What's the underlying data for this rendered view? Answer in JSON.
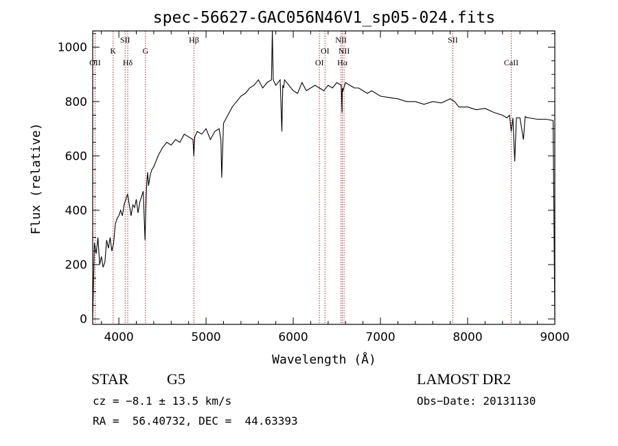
{
  "chart_data": {
    "type": "line",
    "title": "spec-56627-GAC056N46V1_sp05-024.fits",
    "xlabel": "Wavelength (Å)",
    "ylabel": "Flux (relative)",
    "xlim": [
      3700,
      9000
    ],
    "ylim": [
      -20,
      1060
    ],
    "xticks": [
      "4000",
      "5000",
      "6000",
      "7000",
      "8000",
      "9000"
    ],
    "yticks": [
      "0",
      "200",
      "400",
      "600",
      "800",
      "1000"
    ],
    "series": [
      {
        "x": [
          3700,
          3720,
          3740,
          3760,
          3780,
          3800,
          3820,
          3840,
          3860,
          3880,
          3900,
          3920,
          3940,
          3960,
          3980,
          4000,
          4020,
          4040,
          4060,
          4080,
          4100,
          4120,
          4140,
          4160,
          4180,
          4200,
          4220,
          4240,
          4260,
          4280,
          4300,
          4310,
          4320,
          4330,
          4340,
          4360,
          4380,
          4400,
          4450,
          4500,
          4550,
          4600,
          4650,
          4700,
          4750,
          4800,
          4850,
          4860,
          4870,
          4900,
          4950,
          5000,
          5050,
          5100,
          5150,
          5170,
          5180,
          5200,
          5250,
          5300,
          5350,
          5400,
          5450,
          5500,
          5550,
          5600,
          5650,
          5700,
          5750,
          5760,
          5770,
          5800,
          5850,
          5870,
          5880,
          5890,
          5900,
          5950,
          6000,
          6050,
          6100,
          6150,
          6200,
          6250,
          6300,
          6350,
          6400,
          6450,
          6500,
          6550,
          6560,
          6563,
          6570,
          6600,
          6650,
          6700,
          6750,
          6800,
          6850,
          6900,
          7000,
          7100,
          7200,
          7300,
          7400,
          7500,
          7600,
          7700,
          7800,
          7850,
          7900,
          8000,
          8100,
          8200,
          8300,
          8400,
          8450,
          8480,
          8500,
          8520,
          8540,
          8560,
          8600,
          8640,
          8660,
          8680,
          8700,
          8800,
          8900,
          8980,
          9000
        ],
        "y": [
          0,
          280,
          240,
          300,
          200,
          230,
          190,
          210,
          290,
          260,
          300,
          250,
          280,
          350,
          370,
          380,
          400,
          380,
          420,
          440,
          460,
          420,
          380,
          420,
          410,
          440,
          390,
          430,
          450,
          470,
          290,
          420,
          500,
          540,
          490,
          530,
          550,
          560,
          600,
          630,
          650,
          640,
          660,
          650,
          680,
          670,
          660,
          600,
          670,
          690,
          680,
          700,
          660,
          690,
          700,
          660,
          520,
          720,
          750,
          780,
          800,
          820,
          830,
          850,
          860,
          880,
          850,
          870,
          880,
          1060,
          880,
          860,
          880,
          690,
          860,
          850,
          880,
          860,
          840,
          830,
          870,
          840,
          850,
          860,
          850,
          840,
          860,
          850,
          870,
          860,
          760,
          850,
          840,
          870,
          860,
          850,
          850,
          840,
          830,
          840,
          820,
          815,
          810,
          800,
          800,
          790,
          800,
          795,
          810,
          800,
          780,
          780,
          770,
          775,
          760,
          750,
          740,
          750,
          690,
          740,
          580,
          740,
          740,
          660,
          745,
          740,
          740,
          735,
          735,
          730,
          0
        ]
      }
    ],
    "lines": [
      {
        "label": "OII",
        "x": 3727,
        "row": 3
      },
      {
        "label": "K",
        "x": 3934,
        "row": 2
      },
      {
        "label": "SII",
        "x": 4072,
        "row": 1
      },
      {
        "label": "Hδ",
        "x": 4102,
        "row": 3
      },
      {
        "label": "G",
        "x": 4305,
        "row": 2
      },
      {
        "label": "Hβ",
        "x": 4861,
        "row": 1
      },
      {
        "label": "OI",
        "x": 6300,
        "row": 3
      },
      {
        "label": "OI",
        "x": 6364,
        "row": 2
      },
      {
        "label": "NII",
        "x": 6548,
        "row": 1
      },
      {
        "label": "Hα",
        "x": 6563,
        "row": 3
      },
      {
        "label": "NII",
        "x": 6583,
        "row": 2
      },
      {
        "label": "SII",
        "x": 7830,
        "row": 1
      },
      {
        "label": "CaII",
        "x": 8500,
        "row": 3
      }
    ],
    "grid": false
  },
  "info": {
    "class_label": "STAR",
    "subclass": "G5",
    "survey": "LAMOST DR2",
    "cz": "cz = −8.1 ± 13.5 km/s",
    "obs_date": "Obs−Date: 20131130",
    "coords": "RA =  56.40732, DEC =  44.63393"
  },
  "colors": {
    "spectrum": "#000000",
    "line_marker": "#b22222",
    "axis": "#000000"
  }
}
